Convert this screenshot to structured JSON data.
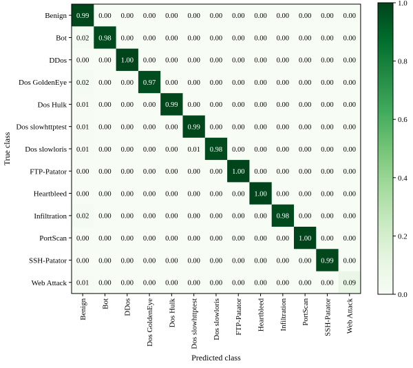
{
  "chart_data": {
    "type": "heatmap",
    "title": "",
    "xlabel": "Predicted class",
    "ylabel": "True class",
    "rows": [
      "Benign",
      "Bot",
      "DDos",
      "Dos GoldenEye",
      "Dos Hulk",
      "Dos slowhttptest",
      "Dos slowloris",
      "FTP-Patator",
      "Heartbleed",
      "Infiltration",
      "PortScan",
      "SSH-Patator",
      "Web Attack"
    ],
    "columns": [
      "Benign",
      "Bot",
      "DDos",
      "Dos GoldenEye",
      "Dos Hulk",
      "Dos slowhttptest",
      "Dos slowloris",
      "FTP-Patator",
      "Heartbleed",
      "Infiltration",
      "PortScan",
      "SSH-Patator",
      "Web Attack"
    ],
    "values": [
      [
        0.99,
        0.0,
        0.0,
        0.0,
        0.0,
        0.0,
        0.0,
        0.0,
        0.0,
        0.0,
        0.0,
        0.0,
        0.0
      ],
      [
        0.02,
        0.98,
        0.0,
        0.0,
        0.0,
        0.0,
        0.0,
        0.0,
        0.0,
        0.0,
        0.0,
        0.0,
        0.0
      ],
      [
        0.0,
        0.0,
        1.0,
        0.0,
        0.0,
        0.0,
        0.0,
        0.0,
        0.0,
        0.0,
        0.0,
        0.0,
        0.0
      ],
      [
        0.02,
        0.0,
        0.0,
        0.97,
        0.0,
        0.0,
        0.0,
        0.0,
        0.0,
        0.0,
        0.0,
        0.0,
        0.0
      ],
      [
        0.01,
        0.0,
        0.0,
        0.0,
        0.99,
        0.0,
        0.0,
        0.0,
        0.0,
        0.0,
        0.0,
        0.0,
        0.0
      ],
      [
        0.01,
        0.0,
        0.0,
        0.0,
        0.0,
        0.99,
        0.0,
        0.0,
        0.0,
        0.0,
        0.0,
        0.0,
        0.0
      ],
      [
        0.01,
        0.0,
        0.0,
        0.0,
        0.0,
        0.01,
        0.98,
        0.0,
        0.0,
        0.0,
        0.0,
        0.0,
        0.0
      ],
      [
        0.0,
        0.0,
        0.0,
        0.0,
        0.0,
        0.0,
        0.0,
        1.0,
        0.0,
        0.0,
        0.0,
        0.0,
        0.0
      ],
      [
        0.0,
        0.0,
        0.0,
        0.0,
        0.0,
        0.0,
        0.0,
        0.0,
        1.0,
        0.0,
        0.0,
        0.0,
        0.0
      ],
      [
        0.02,
        0.0,
        0.0,
        0.0,
        0.0,
        0.0,
        0.0,
        0.0,
        0.0,
        0.98,
        0.0,
        0.0,
        0.0
      ],
      [
        0.0,
        0.0,
        0.0,
        0.0,
        0.0,
        0.0,
        0.0,
        0.0,
        0.0,
        0.0,
        1.0,
        0.0,
        0.0
      ],
      [
        0.0,
        0.0,
        0.0,
        0.0,
        0.0,
        0.0,
        0.0,
        0.0,
        0.0,
        0.0,
        0.0,
        0.99,
        0.0
      ],
      [
        0.01,
        0.0,
        0.0,
        0.0,
        0.0,
        0.0,
        0.0,
        0.0,
        0.0,
        0.0,
        0.0,
        0.0,
        0.09
      ]
    ],
    "colorbar": {
      "range": [
        0.0,
        1.0
      ],
      "ticks": [
        0.0,
        0.2,
        0.4,
        0.6,
        0.8,
        1.0
      ],
      "tick_labels": [
        "0.0",
        "0.2",
        "0.4",
        "0.6",
        "0.8",
        "1.0"
      ],
      "colormap": "Greens",
      "low_color": "#f7fcf5",
      "high_color": "#00441b"
    }
  }
}
